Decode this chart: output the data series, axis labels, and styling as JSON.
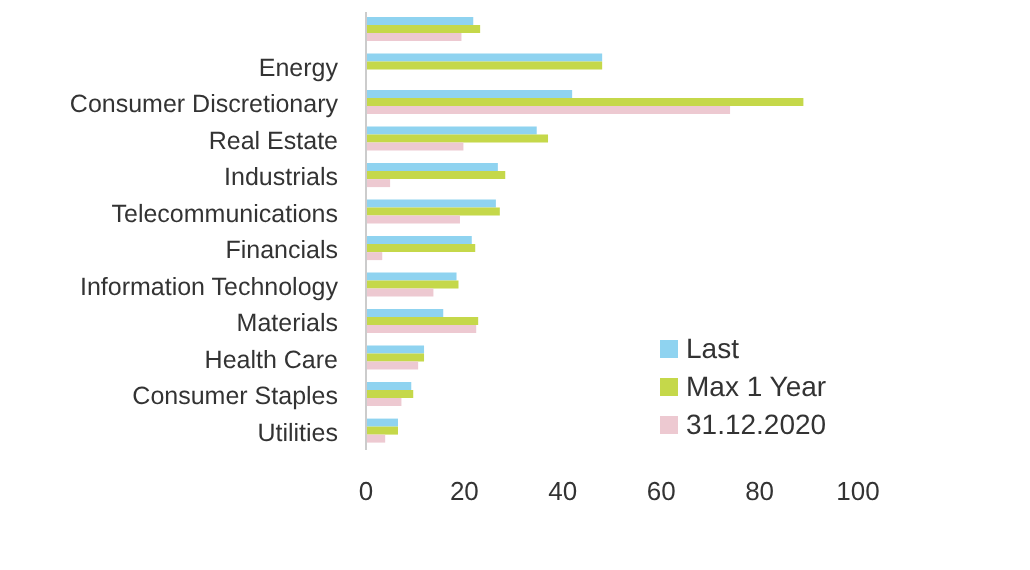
{
  "chart_data": {
    "type": "bar",
    "orientation": "horizontal",
    "categories": [
      null,
      "Energy",
      "Consumer Discretionary",
      "Real Estate",
      "Industrials",
      "Telecommunications",
      "Financials",
      "Information Technology",
      "Materials",
      "Health Care",
      "Consumer Staples",
      "Utilities"
    ],
    "series": [
      {
        "name": "Last",
        "color": "#8fd3f0",
        "values": [
          21.8,
          48,
          41.9,
          34.7,
          26.8,
          26.4,
          21.5,
          18.4,
          15.7,
          11.8,
          9.2,
          6.5
        ]
      },
      {
        "name": "Max 1 Year",
        "color": "#c5d84a",
        "values": [
          23.2,
          48,
          88.9,
          37,
          28.3,
          27.2,
          22.2,
          18.8,
          22.8,
          11.8,
          9.6,
          6.5
        ]
      },
      {
        "name": "31.12.2020",
        "color": "#edc9d1",
        "values": [
          19.4,
          null,
          74,
          19.8,
          4.9,
          19.1,
          3.3,
          13.7,
          22.4,
          10.6,
          7.2,
          3.9
        ]
      }
    ],
    "xlim": [
      0,
      100
    ],
    "xticks": [
      0,
      20,
      40,
      60,
      80,
      100
    ],
    "grid": false,
    "legend": "bottom right"
  }
}
